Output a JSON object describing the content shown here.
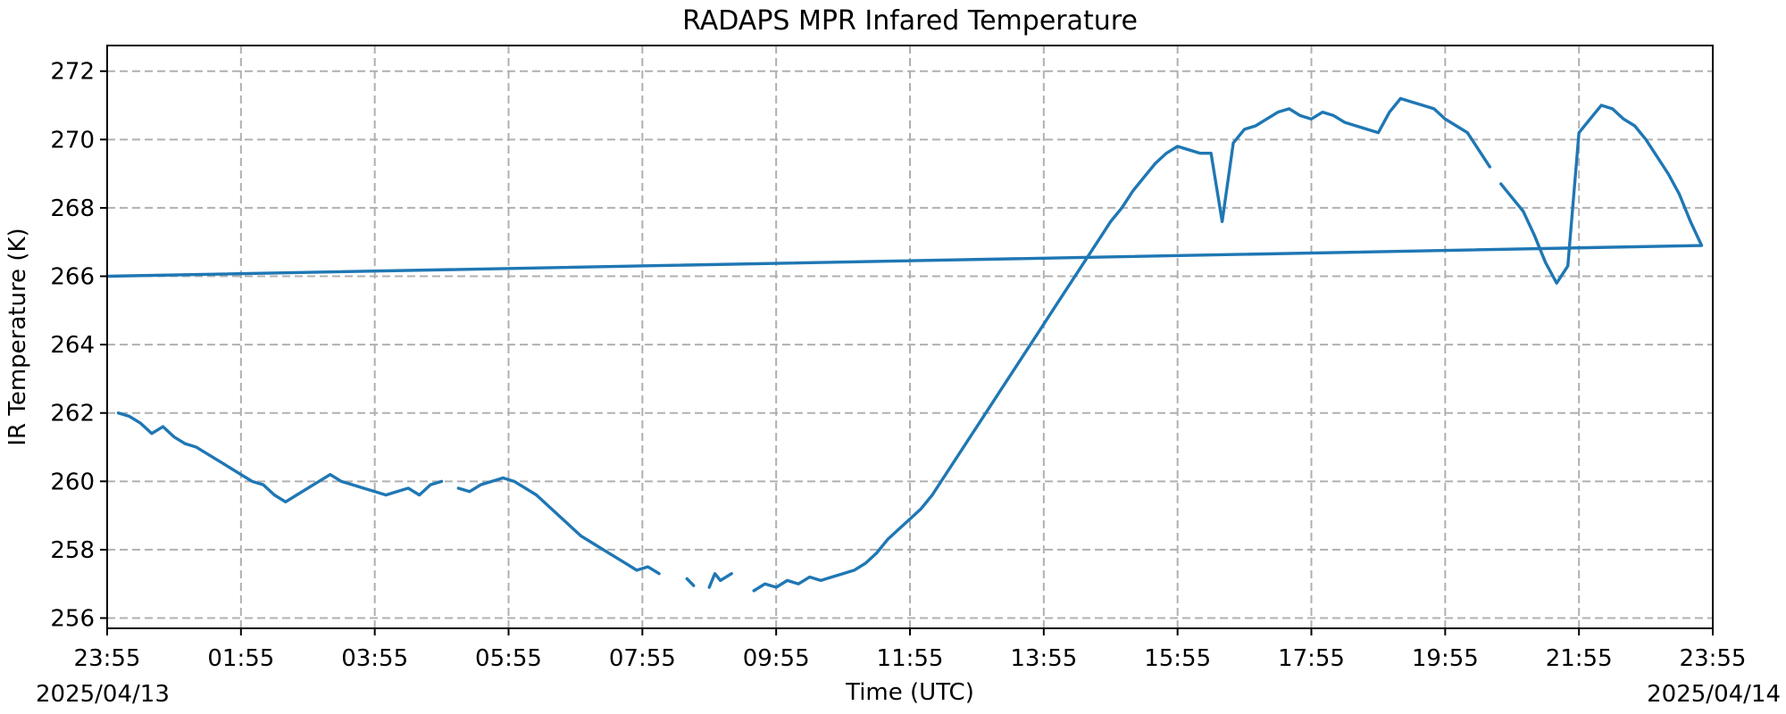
{
  "chart_data": {
    "type": "line",
    "title": "RADAPS MPR Infared Temperature",
    "xlabel": "Time (UTC)",
    "ylabel": "IR Temperature (K)",
    "x_start_label": "2025/04/13",
    "x_end_label": "2025/04/14",
    "xlim": [
      "23:55",
      "23:55"
    ],
    "ylim": [
      255.7,
      272.75
    ],
    "x_ticks": [
      "23:55",
      "01:55",
      "03:55",
      "05:55",
      "07:55",
      "09:55",
      "11:55",
      "13:55",
      "15:55",
      "17:55",
      "19:55",
      "21:55",
      "23:55"
    ],
    "y_ticks": [
      256,
      258,
      260,
      262,
      264,
      266,
      268,
      270,
      272
    ],
    "grid": true,
    "legend": "none",
    "series": [
      {
        "color": "#1f77b4",
        "segments": [
          {
            "x": [
              "00:05",
              "00:15",
              "00:25",
              "00:35",
              "00:45",
              "00:55",
              "01:05",
              "01:15",
              "01:25",
              "01:35",
              "01:45",
              "01:55",
              "02:05",
              "02:15",
              "02:25",
              "02:35",
              "02:45",
              "02:55",
              "03:05",
              "03:15",
              "03:25",
              "03:35",
              "03:45",
              "03:55",
              "04:05",
              "04:15",
              "04:25",
              "04:35",
              "04:45",
              "04:55"
            ],
            "y": [
              262.0,
              261.9,
              261.7,
              261.4,
              261.6,
              261.3,
              261.1,
              261.0,
              260.8,
              260.6,
              260.4,
              260.2,
              260.0,
              259.9,
              259.6,
              259.4,
              259.6,
              259.8,
              260.0,
              260.2,
              260.0,
              259.9,
              259.8,
              259.7,
              259.6,
              259.7,
              259.8,
              259.6,
              259.9,
              260.0
            ]
          },
          {
            "x": [
              "05:10",
              "05:20",
              "05:30",
              "05:40",
              "05:50",
              "06:00",
              "06:10",
              "06:20",
              "06:30",
              "06:40",
              "06:50",
              "07:00",
              "07:10",
              "07:20",
              "07:30",
              "07:40",
              "07:50",
              "08:00",
              "08:10"
            ],
            "y": [
              259.8,
              259.7,
              259.9,
              260.0,
              260.1,
              260.0,
              259.8,
              259.6,
              259.3,
              259.0,
              258.7,
              258.4,
              258.2,
              258.0,
              257.8,
              257.6,
              257.4,
              257.5,
              257.3
            ]
          },
          {
            "x": [
              "08:35",
              "08:41"
            ],
            "y": [
              257.15,
              256.95
            ]
          },
          {
            "x": [
              "08:55",
              "09:00",
              "09:05",
              "09:10",
              "09:15"
            ],
            "y": [
              256.9,
              257.3,
              257.1,
              257.2,
              257.3
            ]
          },
          {
            "x": [
              "09:35",
              "09:45",
              "09:55",
              "10:05",
              "10:15",
              "10:25",
              "10:35",
              "10:45",
              "10:55",
              "11:05",
              "11:15",
              "11:25",
              "11:35",
              "11:45",
              "11:55",
              "12:05",
              "12:15",
              "12:25",
              "12:35",
              "12:45",
              "12:55",
              "13:05",
              "13:15",
              "13:25",
              "13:35",
              "13:45",
              "13:55",
              "14:05",
              "14:15",
              "14:25",
              "14:35",
              "14:45",
              "14:55",
              "15:05",
              "15:15",
              "15:25",
              "15:35",
              "15:45",
              "15:55",
              "16:05",
              "16:15",
              "16:25",
              "16:35",
              "16:45",
              "16:55",
              "17:05",
              "17:15",
              "17:25",
              "17:35",
              "17:45",
              "17:55",
              "18:05",
              "18:15",
              "18:25",
              "18:35",
              "18:45",
              "18:55",
              "19:05",
              "19:15",
              "19:25",
              "19:35",
              "19:45",
              "19:55",
              "20:05",
              "20:15",
              "20:25",
              "20:35"
            ],
            "y": [
              256.8,
              257.0,
              256.9,
              257.1,
              257.0,
              257.2,
              257.1,
              257.2,
              257.3,
              257.4,
              257.6,
              257.9,
              258.3,
              258.6,
              258.9,
              259.2,
              259.6,
              260.1,
              260.6,
              261.1,
              261.6,
              262.1,
              262.6,
              263.1,
              263.6,
              264.1,
              264.6,
              265.1,
              265.6,
              266.1,
              266.6,
              267.1,
              267.6,
              268.0,
              268.5,
              268.9,
              269.3,
              269.6,
              269.8,
              269.7,
              269.6,
              269.6,
              267.6,
              269.9,
              270.3,
              270.4,
              270.6,
              270.8,
              270.9,
              270.7,
              270.6,
              270.8,
              270.7,
              270.5,
              270.4,
              270.3,
              270.2,
              270.8,
              271.2,
              271.1,
              271.0,
              270.9,
              270.6,
              270.4,
              270.2,
              269.7,
              269.2
            ]
          },
          {
            "x": [
              "20:45",
              "20:55",
              "21:05",
              "21:15",
              "21:25",
              "21:35",
              "21:45",
              "21:55",
              "22:05",
              "22:15",
              "22:25",
              "22:35",
              "22:45",
              "22:55",
              "23:05",
              "23:15",
              "23:25",
              "23:35",
              "23:45",
              "23:55"
            ],
            "y": [
              268.7,
              268.3,
              267.9,
              267.2,
              266.4,
              265.8,
              266.3,
              270.2,
              270.6,
              271.0,
              270.9,
              270.6,
              270.4,
              270.0,
              269.5,
              269.0,
              268.4,
              267.6,
              266.9,
              266.0
            ]
          }
        ]
      }
    ]
  }
}
